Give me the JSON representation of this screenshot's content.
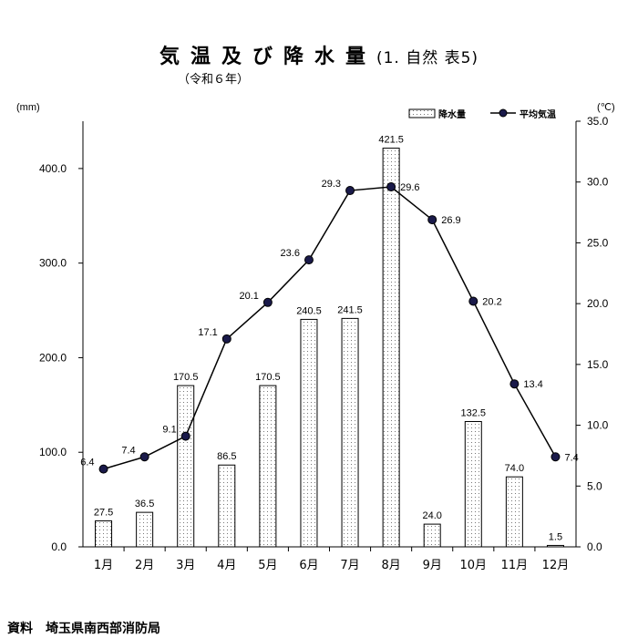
{
  "title": "気温及び降水量",
  "title_suffix": "(1. 自然 表5)",
  "subtitle": "（令和６年）",
  "source": "資料　埼玉県南西部消防局",
  "chart_data": {
    "type": "bar+line",
    "categories": [
      "1月",
      "2月",
      "3月",
      "4月",
      "5月",
      "6月",
      "7月",
      "8月",
      "9月",
      "10月",
      "11月",
      "12月"
    ],
    "series": [
      {
        "name": "降水量",
        "type": "bar",
        "axis": "left",
        "values": [
          27.5,
          36.5,
          170.5,
          86.5,
          170.5,
          240.5,
          241.5,
          421.5,
          24.0,
          132.5,
          74.0,
          1.5
        ],
        "labels": [
          "27.5",
          "36.5",
          "170.5",
          "86.5",
          "170.5",
          "240.5",
          "241.5",
          "421.5",
          "24.0",
          "132.5",
          "74.0",
          "1.5"
        ]
      },
      {
        "name": "平均気温",
        "type": "line",
        "axis": "right",
        "values": [
          6.4,
          7.4,
          9.1,
          17.1,
          20.1,
          23.6,
          29.3,
          29.6,
          26.9,
          20.2,
          13.4,
          7.4
        ],
        "labels": [
          "6.4",
          "7.4",
          "9.1",
          "17.1",
          "20.1",
          "23.6",
          "29.3",
          "29.6",
          "26.9",
          "20.2",
          "13.4",
          "7.4"
        ]
      }
    ],
    "y_left": {
      "unit": "(mm)",
      "ylim": [
        0,
        450
      ],
      "ticks": [
        "0.0",
        "100.0",
        "200.0",
        "300.0",
        "400.0"
      ],
      "tick_values": [
        0,
        100,
        200,
        300,
        400
      ]
    },
    "y_right": {
      "unit": "(℃)",
      "ylim": [
        0,
        35
      ],
      "ticks": [
        "0.0",
        "5.0",
        "10.0",
        "15.0",
        "20.0",
        "25.0",
        "30.0",
        "35.0"
      ],
      "tick_values": [
        0,
        5,
        10,
        15,
        20,
        25,
        30,
        35
      ]
    },
    "grid": false,
    "legend_position": "top-right",
    "colors": {
      "bar_fill": "#ffffff",
      "bar_dots": "#777777",
      "bar_stroke": "#000000",
      "line": "#000000",
      "marker": "#1a1a4a"
    }
  }
}
